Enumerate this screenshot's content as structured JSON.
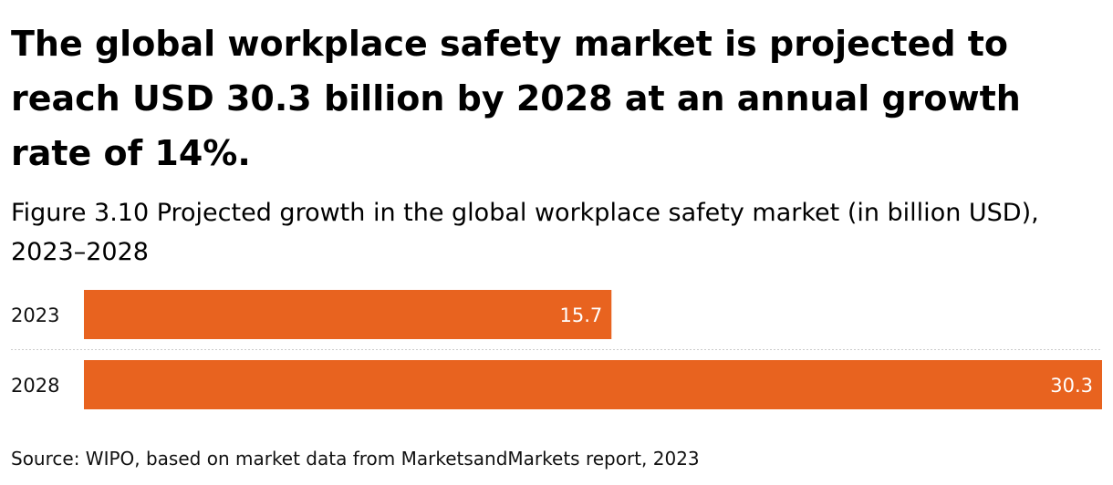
{
  "headline": "The global workplace safety market is projected to reach USD 30.3 billion by 2028 at an annual growth rate of 14%.",
  "subtitle": "Figure 3.10 Projected growth in the global workplace safety market (in billion USD), 2023–2028",
  "source": "Source: WIPO, based on market data from MarketsandMarkets report, 2023",
  "colors": {
    "bar": "#E8631F",
    "separator": "#cccccc"
  },
  "chart_data": {
    "type": "bar",
    "orientation": "horizontal",
    "title": "Figure 3.10 Projected growth in the global workplace safety market (in billion USD), 2023–2028",
    "categories": [
      "2023",
      "2028"
    ],
    "values": [
      15.7,
      30.3
    ],
    "value_labels": [
      "15.7",
      "30.3"
    ],
    "xlabel": "",
    "ylabel": "",
    "xlim": [
      0,
      30.3
    ],
    "grid": false,
    "legend": "none"
  }
}
